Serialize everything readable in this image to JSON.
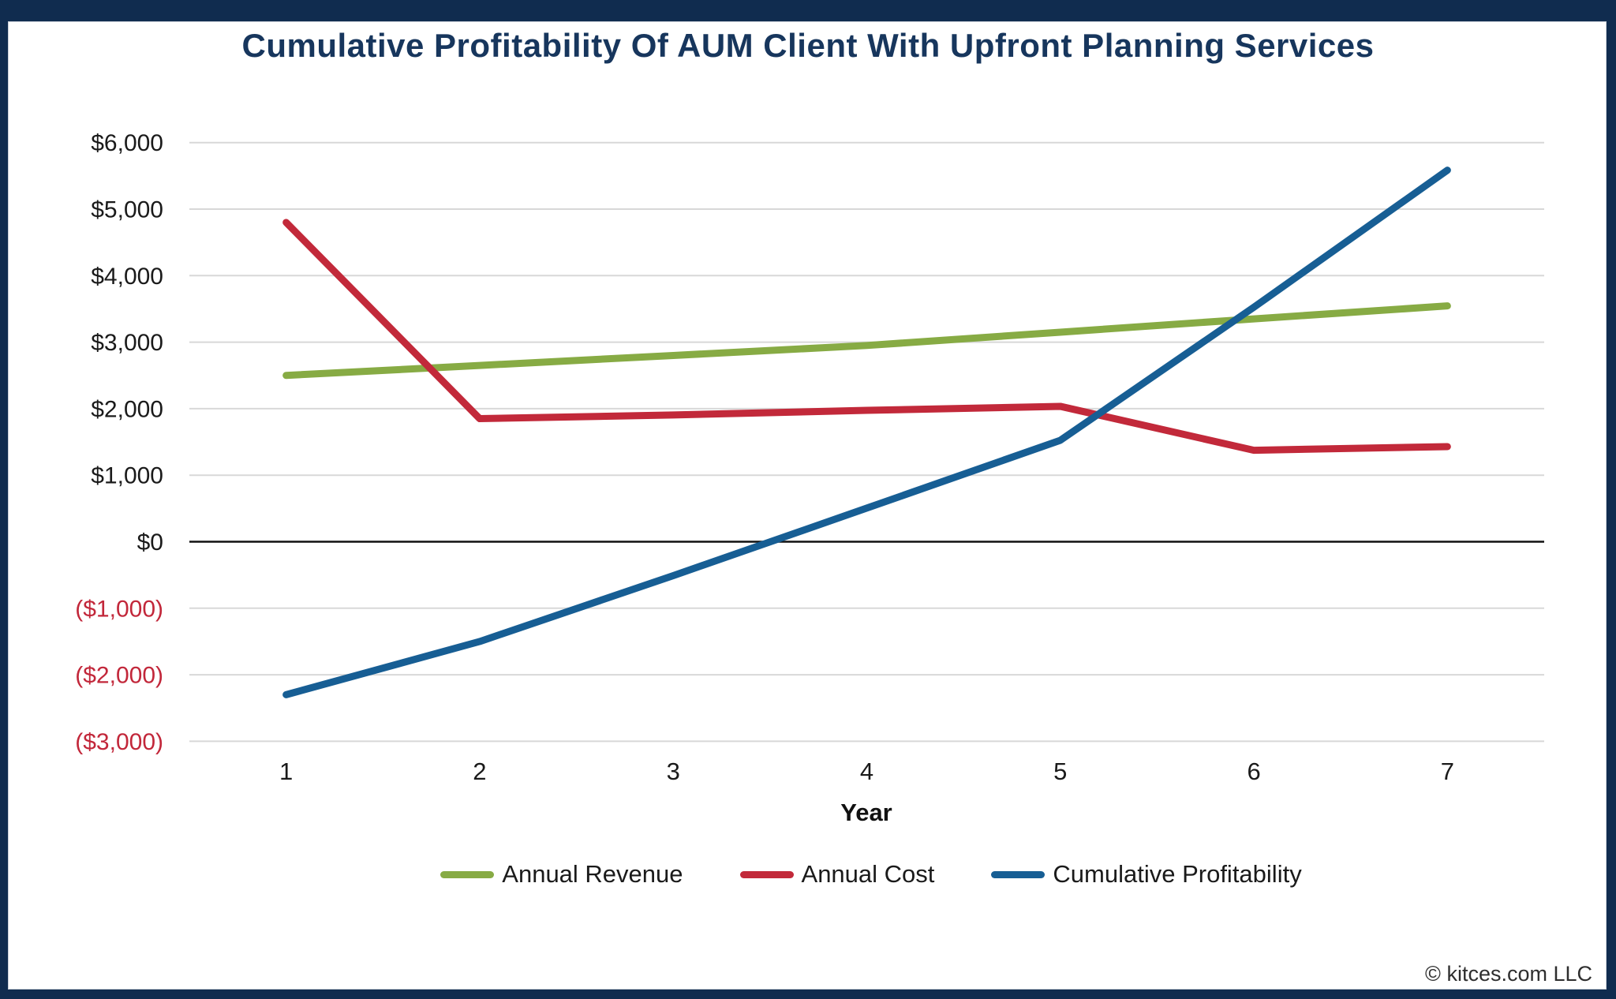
{
  "page": {
    "footer": "© kitces.com LLC",
    "colors": {
      "frame": "#102C4F",
      "title": "#17365D",
      "grid": "#D8D8D8",
      "zero_line": "#111111",
      "tick_text": "#1A1A1A",
      "negative_tick_text": "#C2273A"
    }
  },
  "chart_data": {
    "type": "line",
    "title": "Cumulative Profitability Of AUM Client With Upfront Planning Services",
    "xlabel": "Year",
    "grid": "horizontal",
    "legend_position": "bottom",
    "categories": [
      1,
      2,
      3,
      4,
      5,
      6,
      7
    ],
    "ylim": [
      -3000,
      6000
    ],
    "yticks": [
      {
        "label": "$6,000",
        "value": 6000
      },
      {
        "label": "$5,000",
        "value": 5000
      },
      {
        "label": "$4,000",
        "value": 4000
      },
      {
        "label": "$3,000",
        "value": 3000
      },
      {
        "label": "$2,000",
        "value": 2000
      },
      {
        "label": "$1,000",
        "value": 1000
      },
      {
        "label": "$0",
        "value": 0
      },
      {
        "label": "($1,000)",
        "value": -1000
      },
      {
        "label": "($2,000)",
        "value": -2000
      },
      {
        "label": "($3,000)",
        "value": -3000
      }
    ],
    "series": [
      {
        "name": "Annual Revenue",
        "color": "#87AB44",
        "values": [
          2500,
          2650,
          2800,
          2950,
          3150,
          3350,
          3545
        ]
      },
      {
        "name": "Annual Cost",
        "color": "#C2293A",
        "values": [
          4800,
          1850,
          1905,
          1975,
          2035,
          1375,
          1430
        ]
      },
      {
        "name": "Cumulative Profitability",
        "color": "#175E94",
        "values": [
          -2300,
          -1500,
          -510,
          505,
          1525,
          3525,
          5585
        ]
      }
    ]
  }
}
